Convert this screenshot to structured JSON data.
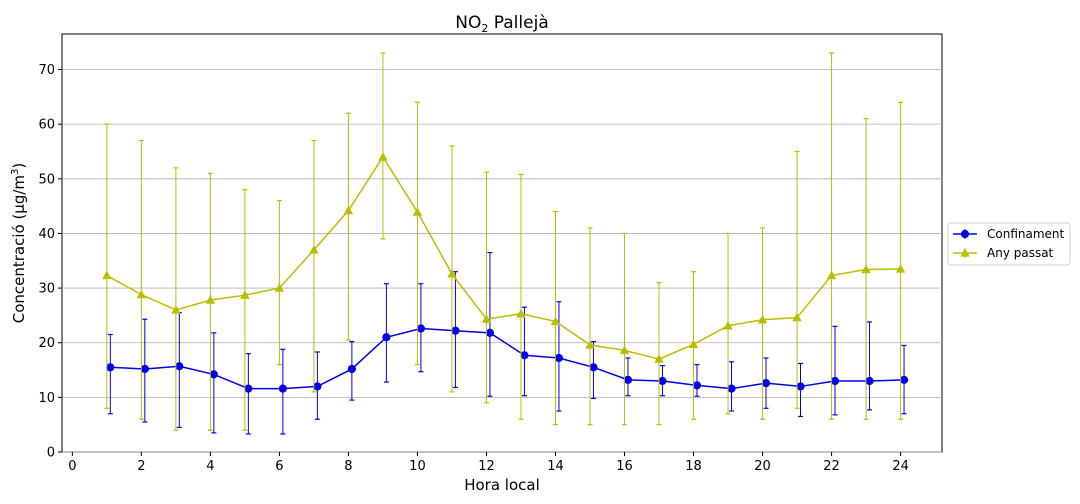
{
  "chart_data": {
    "type": "line",
    "title": {
      "pre": "NO",
      "sub": "2",
      "post": " Pallejà"
    },
    "xlabel": "Hora local",
    "ylabel": {
      "pre": "Concentració (μg/m",
      "sup": "3",
      "post": ")"
    },
    "xlim": [
      -0.3,
      25.2
    ],
    "ylim": [
      0,
      76.5
    ],
    "xticks": [
      0,
      2,
      4,
      6,
      8,
      10,
      12,
      14,
      16,
      18,
      20,
      22,
      24
    ],
    "yticks": [
      0,
      10,
      20,
      30,
      40,
      50,
      60,
      70
    ],
    "grid": "y",
    "legend_position": "outside-right",
    "x": [
      1,
      2,
      3,
      4,
      5,
      6,
      7,
      8,
      9,
      10,
      11,
      12,
      13,
      14,
      15,
      16,
      17,
      18,
      19,
      20,
      21,
      22,
      23,
      24
    ],
    "series": [
      {
        "name": "Confinament",
        "color": "#0000ee",
        "marker": "circle",
        "values": [
          15.5,
          15.2,
          15.7,
          14.2,
          11.6,
          11.6,
          12.0,
          15.2,
          21.0,
          22.6,
          22.2,
          21.8,
          17.7,
          17.2,
          15.5,
          13.2,
          13.0,
          12.2,
          11.6,
          12.6,
          12.0,
          13.0,
          13.0,
          13.2
        ],
        "err_low": [
          7.0,
          5.5,
          4.5,
          3.5,
          3.3,
          3.3,
          6.0,
          9.5,
          12.8,
          14.7,
          11.8,
          10.2,
          10.3,
          7.5,
          9.8,
          10.3,
          10.3,
          10.2,
          7.5,
          8.0,
          6.5,
          6.8,
          7.7,
          7.0
        ],
        "err_high": [
          21.5,
          24.3,
          25.5,
          21.8,
          18.0,
          18.8,
          18.3,
          20.2,
          30.8,
          30.8,
          33.0,
          36.5,
          26.5,
          27.5,
          20.2,
          17.2,
          15.8,
          16.0,
          16.5,
          17.2,
          16.2,
          23.0,
          23.8,
          19.5
        ]
      },
      {
        "name": "Any passat",
        "color": "#bdbd00",
        "marker": "triangle",
        "values": [
          32.3,
          28.8,
          26.0,
          27.8,
          28.7,
          30.0,
          37.0,
          44.2,
          54.0,
          43.9,
          32.6,
          24.3,
          25.3,
          23.9,
          19.6,
          18.6,
          17.0,
          19.7,
          23.1,
          24.2,
          24.6,
          32.3,
          33.4,
          33.5
        ],
        "err_low": [
          8.0,
          6.0,
          4.0,
          4.0,
          4.0,
          16.0,
          11.0,
          20.5,
          39.0,
          16.0,
          11.0,
          9.0,
          6.0,
          5.0,
          5.0,
          5.0,
          5.0,
          6.0,
          7.0,
          6.0,
          8.0,
          6.0,
          6.0,
          6.0
        ],
        "err_high": [
          60.0,
          57.0,
          52.0,
          51.0,
          48.0,
          46.0,
          57.0,
          62.0,
          73.0,
          64.0,
          56.0,
          51.2,
          50.8,
          44.0,
          41.0,
          40.0,
          31.0,
          33.0,
          40.0,
          41.0,
          55.0,
          73.0,
          61.0,
          64.0
        ]
      }
    ]
  }
}
